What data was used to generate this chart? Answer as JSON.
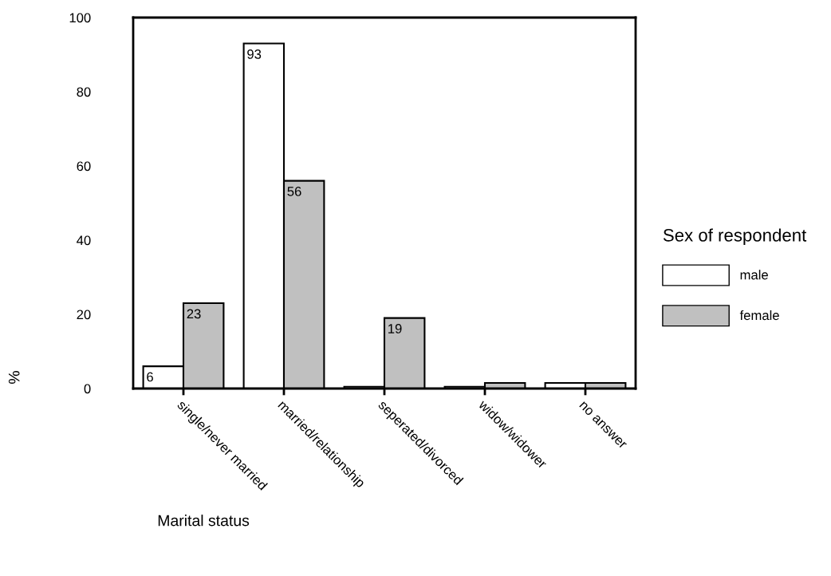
{
  "chart_data": {
    "type": "bar",
    "xlabel": "Marital status",
    "ylabel": "%",
    "legend_title": "Sex of respondent",
    "categories": [
      "single/never married",
      "married/relationship",
      "seperated/divorced",
      "widow/widower",
      "no answer"
    ],
    "series": [
      {
        "name": "male",
        "color": "#ffffff",
        "values": [
          6,
          93,
          0.5,
          0.5,
          1.5
        ],
        "value_labels": [
          "6",
          "93",
          null,
          null,
          null
        ]
      },
      {
        "name": "female",
        "color": "#c0c0c0",
        "values": [
          23,
          56,
          19,
          1.5,
          1.5
        ],
        "value_labels": [
          "23",
          "56",
          "19",
          null,
          null
        ]
      }
    ],
    "ylim": [
      0,
      100
    ],
    "yticks": [
      0,
      20,
      40,
      60,
      80,
      100
    ],
    "grid": false,
    "legend": "right"
  }
}
